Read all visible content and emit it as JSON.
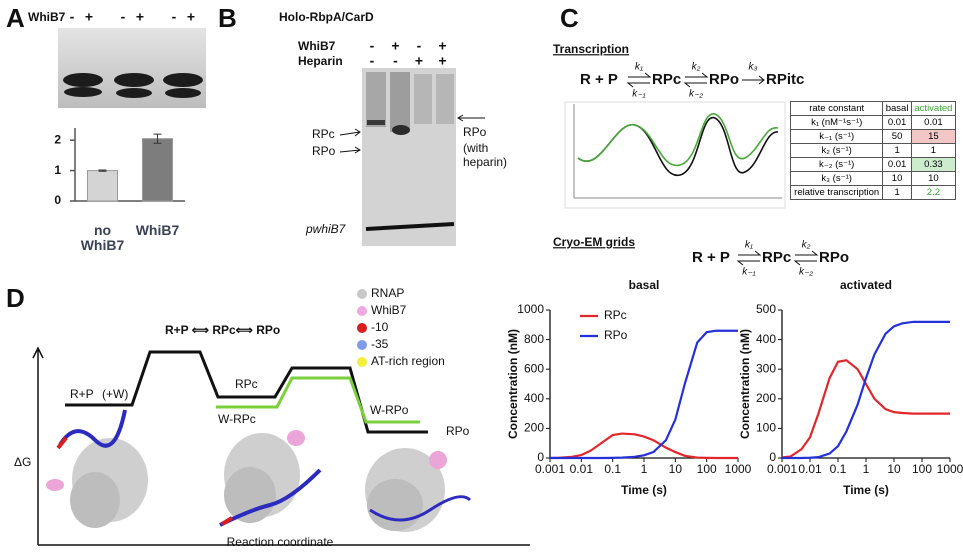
{
  "panel_labels": [
    "A",
    "B",
    "C",
    "D"
  ],
  "panel_a": {
    "row_label": "WhiB7",
    "signs": [
      "-",
      "+",
      "-",
      "+",
      "-",
      "+"
    ]
  },
  "panel_b": {
    "title": "Holo-RbpA/CarD",
    "rows": [
      {
        "label": "WhiB7",
        "signs": [
          "-",
          "+",
          "-",
          "+"
        ]
      },
      {
        "label": "Heparin",
        "signs": [
          "-",
          "-",
          "+",
          "+"
        ]
      }
    ],
    "band_labels": [
      "RPc",
      "RPo"
    ],
    "right_label": [
      "RPo",
      "(with",
      "heparin)"
    ],
    "bottom_label": "pwhiB7"
  },
  "panel_c": {
    "transcription": {
      "heading": "Transcription",
      "species": [
        "R + P",
        "RPc",
        "RPo",
        "RPitc"
      ],
      "rates": [
        "k₁",
        "k₋₁",
        "k₂",
        "k₋₂",
        "k₃"
      ],
      "table": {
        "header": [
          "rate constant",
          "basal",
          "activated"
        ],
        "rows": [
          [
            "k₁ (nM⁻¹s⁻¹)",
            "0.01",
            "0.01"
          ],
          [
            "k₋₁ (s⁻¹)",
            "50",
            "15"
          ],
          [
            "k₂ (s⁻¹)",
            "1",
            "1"
          ],
          [
            "k₋₂ (s⁻¹)",
            "0.01",
            "0.33"
          ],
          [
            "k₃ (s⁻¹)",
            "10",
            "10"
          ],
          [
            "relative transcription",
            "1",
            "2.2"
          ]
        ]
      }
    },
    "cryo": {
      "heading": "Cryo-EM grids",
      "species": [
        "R + P",
        "RPc",
        "RPo"
      ],
      "rates": [
        "k₁",
        "k₋₁",
        "k₂",
        "k₋₂"
      ]
    }
  },
  "panel_d": {
    "title": "R+P ⟺ RPc⟺ RPo",
    "y_label": "ΔG",
    "x_label": "Reaction coordinate",
    "states": {
      "rp": "R+P",
      "w": "(+W)",
      "rpc": "RPc",
      "wrpc": "W-RPc",
      "wrpo": "W-RPo",
      "rpo": "RPo"
    },
    "legend": [
      {
        "label": "RNAP",
        "color": "#c8c8c8"
      },
      {
        "label": "WhiB7",
        "color": "#f0a8e0"
      },
      {
        "label": "-10",
        "color": "#d81e1e"
      },
      {
        "label": "-35",
        "color": "#7f9be8"
      },
      {
        "label": "AT-rich region",
        "color": "#f2ee3a"
      }
    ]
  },
  "chart_data": [
    {
      "type": "bar",
      "categories": [
        "no WhiB7",
        "WhiB7"
      ],
      "values": [
        1.0,
        2.05
      ],
      "errors": [
        0.02,
        0.15
      ],
      "colors": [
        "#d4d4d4",
        "#7d7d7d"
      ],
      "ylim": [
        0,
        2.4
      ],
      "yticks": [
        0,
        1,
        2
      ]
    },
    {
      "type": "line",
      "title": "basal",
      "xlabel": "Time (s)",
      "ylabel": "Concentration (nM)",
      "xscale": "log",
      "x": [
        0.001,
        0.002,
        0.005,
        0.01,
        0.02,
        0.05,
        0.1,
        0.2,
        0.5,
        1,
        2,
        5,
        10,
        20,
        50,
        100,
        200,
        500,
        1000
      ],
      "series": [
        {
          "name": "RPc",
          "color": "#e3262b",
          "values": [
            0,
            2,
            8,
            20,
            50,
            110,
            155,
            165,
            160,
            145,
            120,
            70,
            40,
            15,
            3,
            1,
            0,
            0,
            0
          ]
        },
        {
          "name": "RPo",
          "color": "#2430d8",
          "values": [
            0,
            0,
            0,
            0,
            0,
            0,
            1,
            3,
            8,
            18,
            40,
            120,
            260,
            500,
            780,
            850,
            860,
            860,
            860
          ]
        }
      ],
      "xlim": [
        0.001,
        1000
      ],
      "xticks": [
        0.001,
        0.01,
        0.1,
        1,
        10,
        100,
        1000
      ],
      "ylim": [
        0,
        1000
      ],
      "yticks": [
        0,
        200,
        400,
        600,
        800,
        1000
      ],
      "legend": "upper left"
    },
    {
      "type": "line",
      "title": "activated",
      "xlabel": "Time (s)",
      "ylabel": "Concentration (nM)",
      "xscale": "log",
      "x": [
        0.001,
        0.002,
        0.005,
        0.01,
        0.02,
        0.05,
        0.1,
        0.2,
        0.5,
        1,
        2,
        5,
        10,
        20,
        50,
        100,
        200,
        500,
        1000
      ],
      "series": [
        {
          "color": "#e3262b",
          "values": [
            2,
            5,
            30,
            70,
            150,
            270,
            325,
            330,
            300,
            250,
            200,
            165,
            155,
            152,
            150,
            150,
            150,
            150,
            150
          ]
        },
        {
          "color": "#2430d8",
          "values": [
            0,
            0,
            0,
            1,
            3,
            15,
            40,
            90,
            180,
            270,
            350,
            420,
            445,
            455,
            460,
            460,
            460,
            460,
            460
          ]
        }
      ],
      "xlim": [
        0.001,
        1000
      ],
      "xticks": [
        0.001,
        0.01,
        0.1,
        1,
        10,
        100,
        1000
      ],
      "ylim": [
        0,
        500
      ],
      "yticks": [
        0,
        100,
        200,
        300,
        400,
        500
      ]
    }
  ]
}
